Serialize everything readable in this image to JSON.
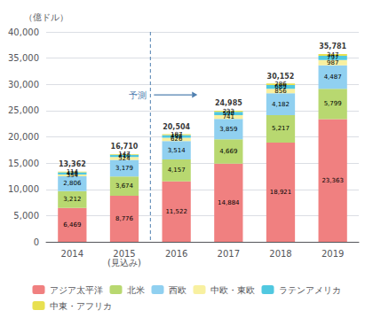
{
  "chart_data": {
    "type": "bar",
    "stacked": true,
    "categories": [
      "2014",
      "2015\n(見込み)",
      "2016",
      "2017",
      "2018",
      "2019"
    ],
    "series": [
      {
        "name": "アジア太平洋",
        "color": "#f08080",
        "values": [
          6469,
          8776,
          11522,
          14884,
          18921,
          23363
        ],
        "value_labels": [
          "6,469",
          "8,776",
          "11,522",
          "14,884",
          "18,921",
          "23,363"
        ]
      },
      {
        "name": "北米",
        "color": "#b8d870",
        "values": [
          3212,
          3674,
          4157,
          4669,
          5217,
          5799
        ],
        "value_labels": [
          "3,212",
          "3,674",
          "4,157",
          "4,669",
          "5,217",
          "5,799"
        ]
      },
      {
        "name": "西欧",
        "color": "#90d0f0",
        "values": [
          2806,
          3179,
          3514,
          3859,
          4182,
          4487
        ],
        "value_labels": [
          "2,806",
          "3,179",
          "3,514",
          "3,859",
          "4,182",
          "4,487"
        ]
      },
      {
        "name": "中欧・東欧",
        "color": "#f8f0a0",
        "values": [
          334,
          524,
          626,
          741,
          856,
          987
        ]
      },
      {
        "name": "ラテンアメリカ",
        "color": "#50c8e0",
        "values": [
          426,
          410,
          498,
          598,
          689,
          797
        ]
      },
      {
        "name": "中東・アフリカ",
        "color": "#e8e050",
        "values": [
          114,
          147,
          187,
          233,
          286,
          347
        ]
      }
    ],
    "totals": [
      13362,
      16710,
      20504,
      24985,
      30152,
      35781
    ],
    "total_labels": [
      "13,362",
      "16,710",
      "20,504",
      "24,985",
      "30,152",
      "35,781"
    ],
    "annotations": [
      "予測"
    ],
    "ylabel": "（億ドル）",
    "ylim": [
      0,
      40000
    ],
    "yticks": [
      0,
      {
        "value": 5000,
        "label": "5,000"
      },
      {
        "value": 10000,
        "label": "10,000"
      },
      {
        "value": 15000,
        "label": "15,000"
      },
      {
        "value": 20000,
        "label": "20,000"
      },
      {
        "value": 25000,
        "label": "25,000"
      },
      {
        "value": 30000,
        "label": "30,000"
      },
      {
        "value": 35000,
        "label": "35,000"
      },
      {
        "value": 40000,
        "label": "40,000"
      }
    ],
    "grid": true,
    "legend": "bottom",
    "data_labels": true
  }
}
